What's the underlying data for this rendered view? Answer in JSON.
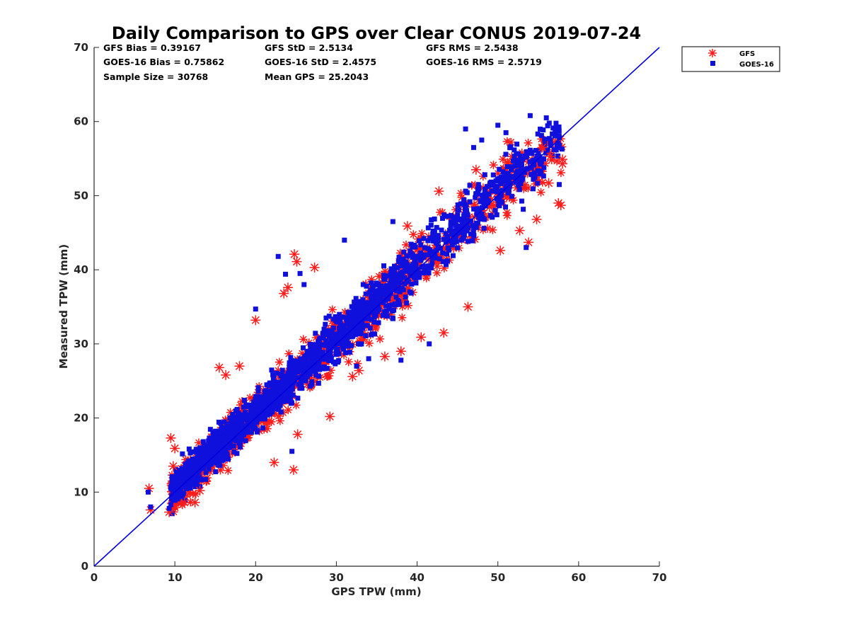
{
  "chart_data": {
    "type": "scatter",
    "title": "Daily Comparison to GPS over Clear CONUS 2019-07-24",
    "xlabel": "GPS TPW (mm)",
    "ylabel": "Measured TPW (mm)",
    "xlim": [
      0,
      70
    ],
    "ylim": [
      0,
      70
    ],
    "xticks": [
      "0",
      "10",
      "20",
      "30",
      "40",
      "50",
      "60",
      "70"
    ],
    "yticks": [
      "0",
      "10",
      "20",
      "30",
      "40",
      "50",
      "60",
      "70"
    ],
    "stats": [
      [
        "GFS Bias = 0.39167",
        "GFS StD = 2.5134",
        "GFS RMS = 2.5438"
      ],
      [
        "GOES-16 Bias = 0.75862",
        "GOES-16 StD = 2.4575",
        "GOES-16 RMS = 2.5719"
      ],
      [
        "Sample Size = 30768",
        "Mean GPS = 25.2043"
      ]
    ],
    "reference_line": {
      "name": "1:1",
      "x": [
        0,
        70
      ],
      "y": [
        0,
        70
      ],
      "color": "#0000dd"
    },
    "legend_position": "outside-top-right",
    "series": [
      {
        "name": "GFS",
        "marker": "asterisk",
        "color": "#ff1a1a",
        "bias": 0.39167,
        "std": 2.5134,
        "rms": 2.5438,
        "points": [
          [
            6.8,
            10.5
          ],
          [
            7.0,
            7.6
          ],
          [
            9.3,
            7.3
          ],
          [
            9.5,
            17.3
          ],
          [
            9.8,
            13.5
          ],
          [
            10.0,
            15.9
          ],
          [
            11.2,
            8.6
          ],
          [
            12.5,
            8.6
          ],
          [
            13.1,
            10.2
          ],
          [
            15.5,
            26.8
          ],
          [
            16.3,
            25.8
          ],
          [
            18.0,
            27.0
          ],
          [
            20.0,
            33.2
          ],
          [
            22.3,
            14.0
          ],
          [
            23.5,
            36.8
          ],
          [
            24.0,
            37.6
          ],
          [
            24.8,
            42.1
          ],
          [
            25.1,
            41.1
          ],
          [
            25.2,
            17.8
          ],
          [
            24.7,
            13.0
          ],
          [
            27.3,
            40.3
          ],
          [
            29.2,
            20.2
          ],
          [
            32.0,
            25.6
          ],
          [
            32.8,
            26.4
          ],
          [
            36.0,
            28.3
          ],
          [
            38.0,
            29.0
          ],
          [
            38.8,
            45.9
          ],
          [
            40.5,
            30.9
          ],
          [
            42.7,
            50.6
          ],
          [
            43.3,
            31.5
          ],
          [
            46.3,
            35.0
          ],
          [
            47.3,
            53.5
          ],
          [
            50.3,
            42.6
          ],
          [
            52.7,
            45.3
          ],
          [
            53.8,
            43.7
          ],
          [
            54.8,
            46.8
          ],
          [
            55.5,
            56.5
          ],
          [
            56.3,
            51.7
          ],
          [
            57.5,
            49.0
          ],
          [
            57.8,
            48.7
          ],
          [
            58.0,
            54.3
          ],
          [
            58.0,
            54.9
          ],
          [
            56.5,
            55.3
          ]
        ]
      },
      {
        "name": "GOES-16",
        "marker": "square",
        "color": "#1010dd",
        "bias": 0.75862,
        "std": 2.4575,
        "rms": 2.5719,
        "points": [
          [
            6.7,
            10.0
          ],
          [
            7.0,
            8.0
          ],
          [
            9.3,
            7.8
          ],
          [
            9.5,
            10.5
          ],
          [
            20.0,
            34.7
          ],
          [
            22.8,
            41.8
          ],
          [
            23.7,
            39.4
          ],
          [
            24.5,
            15.5
          ],
          [
            25.5,
            39.5
          ],
          [
            26.0,
            38.0
          ],
          [
            31.0,
            44.0
          ],
          [
            32.5,
            27.0
          ],
          [
            34.0,
            28.0
          ],
          [
            37.0,
            46.5
          ],
          [
            38.0,
            27.8
          ],
          [
            41.5,
            30.0
          ],
          [
            46.0,
            59.0
          ],
          [
            47.0,
            56.5
          ],
          [
            48.0,
            57.5
          ],
          [
            50.0,
            59.5
          ],
          [
            51.0,
            58.5
          ],
          [
            54.0,
            60.8
          ],
          [
            56.0,
            60.5
          ],
          [
            57.5,
            56.5
          ],
          [
            57.6,
            51.5
          ],
          [
            53.5,
            43.0
          ],
          [
            56.5,
            57.5
          ],
          [
            55.0,
            55.0
          ]
        ]
      }
    ]
  }
}
